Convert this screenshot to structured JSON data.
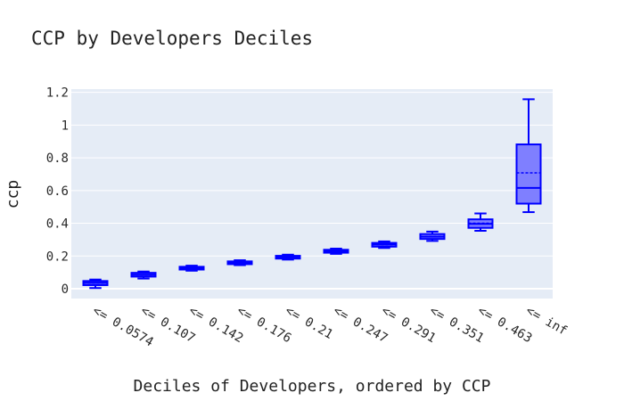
{
  "chart_data": {
    "type": "box",
    "title": "CCP by Developers Deciles",
    "xlabel": "Deciles of Developers, ordered by CCP",
    "ylabel": "ccp",
    "ylim": [
      -0.06,
      1.22
    ],
    "yticks": [
      0,
      0.2,
      0.4,
      0.6,
      0.8,
      1,
      1.2
    ],
    "ytick_labels": [
      "0",
      "0.2",
      "0.4",
      "0.6",
      "0.8",
      "1",
      "1.2"
    ],
    "grid": true,
    "legend": "none",
    "categories": [
      "<= 0.0574",
      "<= 0.107",
      "<= 0.142",
      "<= 0.176",
      "<= 0.21",
      "<= 0.247",
      "<= 0.291",
      "<= 0.351",
      "<= 0.463",
      "<= inf"
    ],
    "boxes": [
      {
        "min": 0.004,
        "q1": 0.022,
        "median": 0.036,
        "mean": 0.034,
        "q3": 0.047,
        "max": 0.056
      },
      {
        "min": 0.062,
        "q1": 0.074,
        "median": 0.086,
        "mean": 0.085,
        "q3": 0.097,
        "max": 0.105
      },
      {
        "min": 0.11,
        "q1": 0.117,
        "median": 0.126,
        "mean": 0.125,
        "q3": 0.134,
        "max": 0.141
      },
      {
        "min": 0.144,
        "q1": 0.15,
        "median": 0.158,
        "mean": 0.159,
        "q3": 0.167,
        "max": 0.174
      },
      {
        "min": 0.178,
        "q1": 0.184,
        "median": 0.193,
        "mean": 0.193,
        "q3": 0.201,
        "max": 0.208
      },
      {
        "min": 0.213,
        "q1": 0.22,
        "median": 0.229,
        "mean": 0.229,
        "q3": 0.238,
        "max": 0.245
      },
      {
        "min": 0.249,
        "q1": 0.257,
        "median": 0.27,
        "mean": 0.269,
        "q3": 0.28,
        "max": 0.289
      },
      {
        "min": 0.292,
        "q1": 0.304,
        "median": 0.318,
        "mean": 0.319,
        "q3": 0.334,
        "max": 0.349
      },
      {
        "min": 0.354,
        "q1": 0.372,
        "median": 0.396,
        "mean": 0.4,
        "q3": 0.424,
        "max": 0.46
      },
      {
        "min": 0.468,
        "q1": 0.52,
        "median": 0.616,
        "mean": 0.708,
        "q3": 0.882,
        "max": 1.158
      }
    ],
    "colors": {
      "plot_bg": "#e5ecf6",
      "grid": "#ffffff",
      "box_line": "#0000ff",
      "box_fill": "#7f7fff"
    }
  }
}
